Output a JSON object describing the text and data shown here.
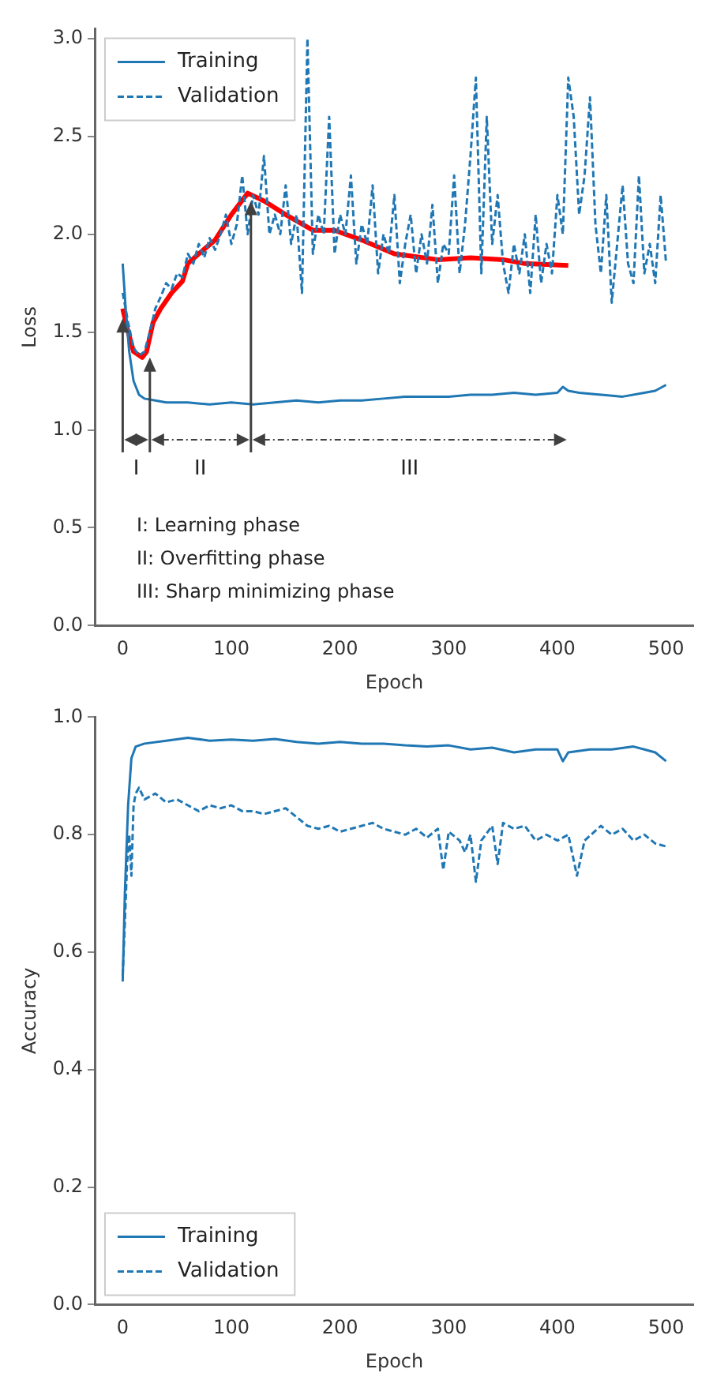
{
  "chart_data": [
    {
      "type": "line",
      "xlabel": "Epoch",
      "ylabel": "Loss",
      "xlim": [
        -25,
        525
      ],
      "ylim": [
        0,
        3.05
      ],
      "xticks": [
        0,
        100,
        200,
        300,
        400,
        500
      ],
      "yticks": [
        {
          "value": 0,
          "label": "0.0"
        },
        0.5,
        {
          "value": 1,
          "label": "1.0"
        },
        1.5,
        {
          "value": 2,
          "label": "2.0"
        },
        2.5,
        {
          "value": 3,
          "label": "3.0"
        }
      ],
      "legend": "top left",
      "grid": false,
      "marker": "none",
      "series": [
        {
          "name": "Training",
          "color": "#1f77b4",
          "line_style": "solid",
          "x": [
            0,
            3,
            6,
            10,
            15,
            20,
            30,
            40,
            60,
            80,
            100,
            120,
            140,
            160,
            180,
            200,
            220,
            240,
            260,
            280,
            300,
            320,
            340,
            360,
            380,
            400,
            405,
            410,
            420,
            440,
            460,
            480,
            490,
            500
          ],
          "values": [
            1.85,
            1.6,
            1.4,
            1.25,
            1.18,
            1.16,
            1.15,
            1.14,
            1.14,
            1.13,
            1.14,
            1.13,
            1.14,
            1.15,
            1.14,
            1.15,
            1.15,
            1.16,
            1.17,
            1.17,
            1.17,
            1.18,
            1.18,
            1.19,
            1.18,
            1.19,
            1.22,
            1.2,
            1.19,
            1.18,
            1.17,
            1.19,
            1.2,
            1.23
          ]
        },
        {
          "name": "Validation",
          "color": "#1f77b4",
          "line_style": "dashed",
          "x": [
            0,
            5,
            10,
            15,
            20,
            25,
            30,
            35,
            40,
            45,
            50,
            55,
            60,
            65,
            70,
            75,
            80,
            85,
            90,
            95,
            100,
            105,
            110,
            115,
            120,
            125,
            130,
            135,
            140,
            145,
            150,
            155,
            160,
            165,
            170,
            175,
            180,
            185,
            190,
            195,
            200,
            205,
            210,
            215,
            220,
            225,
            230,
            235,
            240,
            245,
            250,
            255,
            260,
            265,
            270,
            275,
            280,
            285,
            290,
            295,
            300,
            305,
            310,
            315,
            320,
            325,
            330,
            335,
            340,
            345,
            350,
            355,
            360,
            365,
            370,
            375,
            380,
            385,
            390,
            395,
            400,
            405,
            410,
            415,
            420,
            425,
            430,
            435,
            440,
            445,
            450,
            455,
            460,
            465,
            470,
            475,
            480,
            485,
            490,
            495,
            500
          ],
          "values": [
            1.7,
            1.55,
            1.42,
            1.38,
            1.4,
            1.5,
            1.62,
            1.68,
            1.75,
            1.72,
            1.8,
            1.78,
            1.9,
            1.85,
            1.95,
            1.88,
            1.98,
            1.92,
            2.0,
            2.1,
            1.95,
            2.05,
            2.3,
            2.0,
            2.2,
            2.1,
            2.4,
            2.0,
            2.1,
            2.0,
            2.25,
            1.95,
            2.1,
            1.7,
            3.0,
            1.9,
            2.1,
            2.0,
            2.6,
            1.9,
            2.1,
            2.0,
            2.3,
            1.85,
            2.05,
            1.95,
            2.25,
            1.8,
            2.0,
            1.9,
            2.2,
            1.75,
            1.95,
            2.1,
            1.8,
            2.0,
            1.85,
            2.15,
            1.75,
            1.95,
            1.9,
            2.3,
            1.8,
            2.05,
            2.4,
            2.8,
            1.8,
            2.6,
            1.95,
            2.2,
            1.85,
            1.7,
            1.95,
            1.8,
            2.0,
            1.7,
            2.1,
            1.75,
            1.95,
            1.8,
            2.2,
            2.0,
            2.8,
            2.6,
            2.1,
            2.3,
            2.7,
            2.05,
            1.8,
            2.2,
            1.65,
            1.95,
            2.25,
            1.85,
            1.75,
            2.3,
            1.8,
            1.95,
            1.75,
            2.2,
            1.85
          ]
        },
        {
          "type": "line",
          "color": "#ff0000",
          "line_style": "solid",
          "x": [
            0,
            5,
            10,
            18,
            22,
            28,
            35,
            45,
            55,
            60,
            70,
            85,
            100,
            115,
            130,
            150,
            175,
            195,
            220,
            250,
            290,
            320,
            350,
            370,
            410
          ],
          "values": [
            1.62,
            1.5,
            1.4,
            1.37,
            1.4,
            1.55,
            1.62,
            1.7,
            1.76,
            1.85,
            1.9,
            1.97,
            2.1,
            2.21,
            2.17,
            2.1,
            2.02,
            2.02,
            1.97,
            1.9,
            1.87,
            1.88,
            1.87,
            1.85,
            1.84
          ]
        }
      ],
      "annotations": [
        {
          "text": "I",
          "x": 0,
          "y": 1.57
        },
        "II",
        "III",
        "I: Learning phase",
        "II: Overfitting phase",
        "III: Sharp minimizing phase"
      ]
    },
    {
      "type": "line",
      "xlabel": "Epoch",
      "ylabel": "Accuracy",
      "xlim": [
        -25,
        525
      ],
      "ylim": [
        0,
        1
      ],
      "xticks": [
        0,
        100,
        200,
        300,
        400,
        500
      ],
      "yticks": [
        {
          "value": 0,
          "label": "0.0"
        },
        0.2,
        0.4,
        0.6,
        0.8,
        {
          "value": 1,
          "label": "1.0"
        }
      ],
      "legend": "bottom left",
      "grid": false,
      "marker": "none",
      "series": [
        {
          "name": "Training",
          "color": "#1f77b4",
          "line_style": "solid",
          "x": [
            0,
            2,
            5,
            8,
            12,
            20,
            40,
            60,
            80,
            100,
            120,
            140,
            160,
            180,
            200,
            220,
            240,
            260,
            280,
            300,
            320,
            340,
            360,
            380,
            400,
            405,
            410,
            430,
            450,
            470,
            480,
            490,
            500
          ],
          "values": [
            0.55,
            0.7,
            0.85,
            0.93,
            0.95,
            0.955,
            0.96,
            0.965,
            0.96,
            0.962,
            0.96,
            0.963,
            0.958,
            0.955,
            0.958,
            0.955,
            0.955,
            0.952,
            0.95,
            0.952,
            0.945,
            0.948,
            0.94,
            0.945,
            0.945,
            0.925,
            0.94,
            0.945,
            0.945,
            0.95,
            0.945,
            0.94,
            0.925
          ]
        },
        {
          "name": "Validation",
          "color": "#1f77b4",
          "line_style": "dashed",
          "x": [
            0,
            2,
            4,
            6,
            8,
            10,
            12,
            15,
            20,
            30,
            40,
            50,
            60,
            70,
            80,
            90,
            100,
            110,
            120,
            130,
            140,
            150,
            160,
            170,
            180,
            190,
            200,
            210,
            220,
            230,
            240,
            250,
            260,
            270,
            280,
            290,
            295,
            300,
            310,
            315,
            320,
            325,
            330,
            340,
            345,
            350,
            360,
            370,
            380,
            390,
            400,
            410,
            418,
            425,
            440,
            450,
            460,
            470,
            480,
            490,
            500
          ],
          "values": [
            0.56,
            0.65,
            0.75,
            0.8,
            0.73,
            0.85,
            0.87,
            0.88,
            0.86,
            0.87,
            0.855,
            0.86,
            0.85,
            0.84,
            0.85,
            0.845,
            0.85,
            0.84,
            0.84,
            0.835,
            0.84,
            0.845,
            0.83,
            0.815,
            0.81,
            0.815,
            0.805,
            0.81,
            0.815,
            0.82,
            0.81,
            0.805,
            0.8,
            0.81,
            0.795,
            0.81,
            0.74,
            0.805,
            0.79,
            0.77,
            0.8,
            0.72,
            0.79,
            0.815,
            0.75,
            0.82,
            0.81,
            0.815,
            0.79,
            0.8,
            0.79,
            0.8,
            0.73,
            0.79,
            0.815,
            0.8,
            0.81,
            0.79,
            0.8,
            0.785,
            0.78
          ]
        }
      ]
    }
  ]
}
